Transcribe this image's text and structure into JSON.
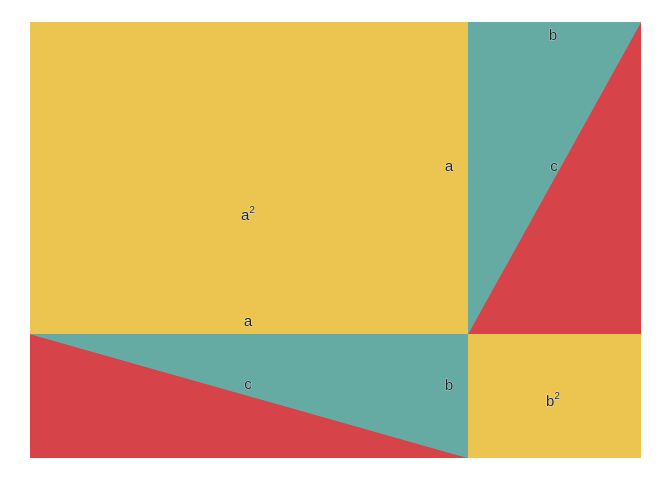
{
  "colors": {
    "yellow": "#ECC550",
    "teal": "#65ABA4",
    "red": "#D64349",
    "background": "#FFFFFF",
    "text": "#222222"
  },
  "labels": {
    "a_square": "a",
    "a_square_exp": "2",
    "b_square": "b",
    "b_square_exp": "2",
    "a_right_side": "a",
    "a_bottom_side": "a",
    "b_top": "b",
    "b_lower": "b",
    "c_upper_hypotenuse": "c",
    "c_lower_hypotenuse": "c"
  }
}
